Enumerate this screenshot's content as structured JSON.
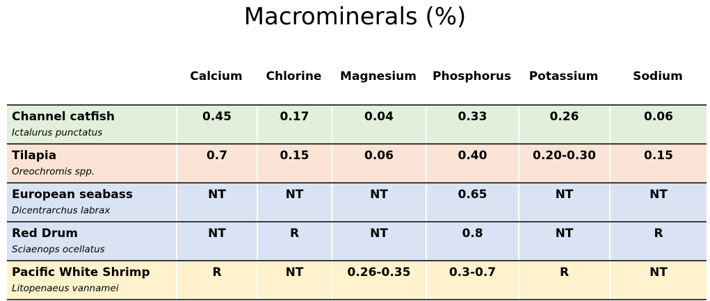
{
  "title": "Macrominerals (%)",
  "table": {
    "columns": [
      "Calcium",
      "Chlorine",
      "Magnesium",
      "Phosphorus",
      "Potassium",
      "Sodium"
    ],
    "rows": [
      {
        "name": "Channel catfish",
        "scientific_name": "Ictalurus punctatus",
        "values": [
          "0.45",
          "0.17",
          "0.04",
          "0.33",
          "0.26",
          "0.06"
        ]
      },
      {
        "name": "Tilapia",
        "scientific_name": "Oreochromis spp.",
        "values": [
          "0.7",
          "0.15",
          "0.06",
          "0.40",
          "0.20-0.30",
          "0.15"
        ]
      },
      {
        "name": "European seabass",
        "scientific_name": "Dicentrarchus labrax",
        "values": [
          "NT",
          "NT",
          "NT",
          "0.65",
          "NT",
          "NT"
        ]
      },
      {
        "name": "Red Drum",
        "scientific_name": "Sciaenops ocellatus",
        "values": [
          "NT",
          "R",
          "NT",
          "0.8",
          "NT",
          "R"
        ]
      },
      {
        "name": "Pacific White Shrimp",
        "scientific_name": "Litopenaeus vannamei",
        "values": [
          "R",
          "NT",
          "0.26-0.35",
          "0.3-0.7",
          "R",
          "NT"
        ]
      }
    ]
  }
}
